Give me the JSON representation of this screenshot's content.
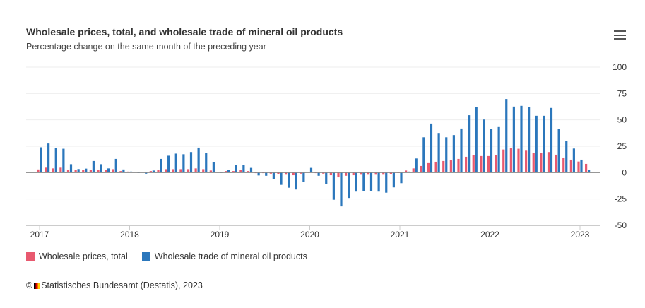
{
  "chart_data": {
    "type": "bar",
    "title": "Wholesale prices, total, and wholesale trade of mineral oil products",
    "subtitle": "Percentage change on the same month of the preceding year",
    "start_month": "2017-01",
    "end_month": "2023-02",
    "x_tick_labels": [
      "2017",
      "2018",
      "2019",
      "2020",
      "2021",
      "2022",
      "2023"
    ],
    "y_ticks": [
      100,
      75,
      50,
      25,
      0,
      -25,
      -50
    ],
    "ylim": [
      -50,
      100
    ],
    "y_axis_position": "right",
    "grid": true,
    "legend_position": "bottom-left",
    "colors": {
      "Wholesale prices, total": "#e8596f",
      "Wholesale trade of mineral oil products": "#2b77bc"
    },
    "series": [
      {
        "name": "Wholesale prices, total",
        "values": [
          3,
          4.7,
          4,
          4.7,
          2.5,
          2.3,
          2.3,
          2.7,
          2.7,
          2.7,
          3.3,
          1.5,
          1,
          0.5,
          0.5,
          1.5,
          2.5,
          3.3,
          3.3,
          3.3,
          3.3,
          4,
          3.3,
          2,
          0.5,
          1.5,
          1.5,
          2.5,
          1.5,
          -0.5,
          -0.5,
          -1,
          -1.5,
          -2,
          -2.5,
          -1,
          0.5,
          -0.5,
          -1,
          -2.5,
          -4.5,
          -3,
          -2.5,
          -2,
          -2,
          -2,
          -2,
          -1.5,
          0,
          2,
          4,
          6.3,
          9,
          10.3,
          11,
          11.6,
          13,
          15,
          16.3,
          15.7,
          15.7,
          16.3,
          21.9,
          23.3,
          22.6,
          20.8,
          18.8,
          18.8,
          19.5,
          17,
          14.3,
          12.3,
          10.5,
          8.3
        ]
      },
      {
        "name": "Wholesale trade of mineral oil products",
        "values": [
          24,
          27.6,
          23,
          22.6,
          8,
          3.4,
          3.8,
          11,
          8,
          4,
          13,
          3,
          1,
          0,
          -1,
          2,
          13,
          16,
          18,
          17.4,
          19.5,
          23.7,
          18.8,
          10,
          0,
          2.7,
          7,
          7,
          4.5,
          -2.7,
          -3,
          -6.3,
          -11.6,
          -14.3,
          -16,
          -9,
          4.5,
          -3,
          -11,
          -25.7,
          -32,
          -24,
          -18,
          -17.5,
          -17.5,
          -18,
          -19,
          -14,
          -10,
          1,
          13.4,
          33.5,
          46.5,
          37.6,
          33.5,
          35.6,
          41.8,
          54.4,
          62,
          50.3,
          41.4,
          43.2,
          69.8,
          62.6,
          63.3,
          62,
          53.9,
          53.9,
          61.3,
          41.4,
          29.8,
          22.8,
          12.3,
          2.7
        ]
      }
    ]
  },
  "legend": [
    "Wholesale prices, total",
    "Wholesale trade of mineral oil products"
  ],
  "credit": "Statistisches Bundesamt (Destatis), 2023",
  "copyright": "©",
  "menu_icon": "hamburger-menu-icon"
}
